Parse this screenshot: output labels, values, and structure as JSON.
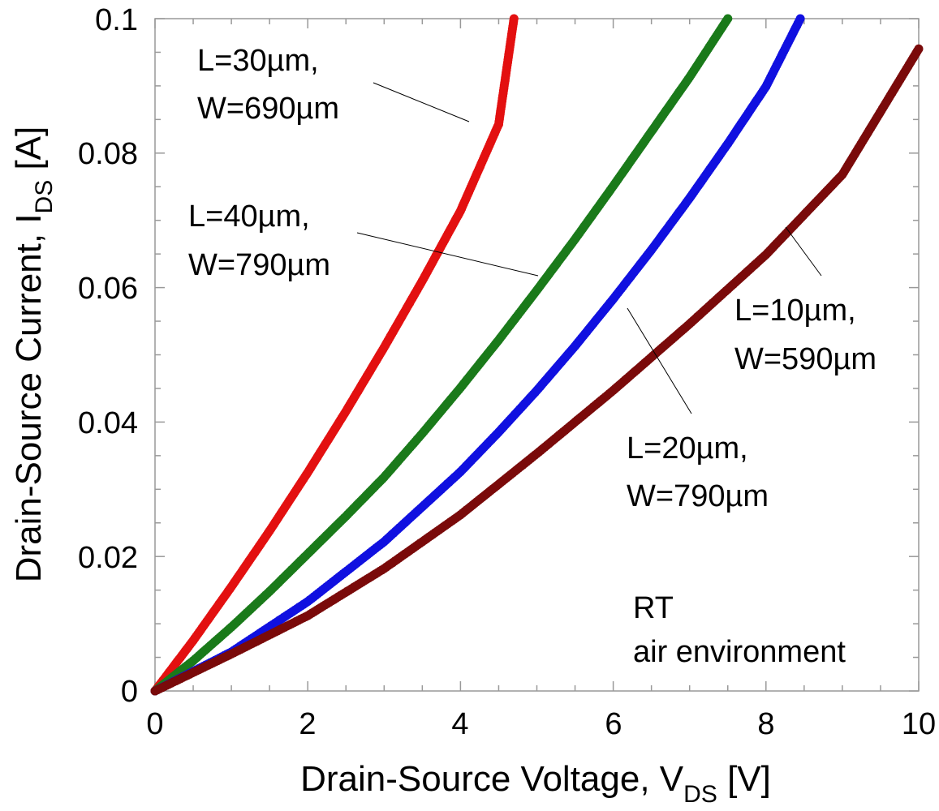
{
  "chart_data": {
    "type": "scatter",
    "title": "",
    "xlabel": {
      "main": "Drain-Source Voltage, V",
      "sub": "DS",
      "unit": " [V]"
    },
    "ylabel": {
      "main": "Drain-Source Current, I",
      "sub": "DS",
      "unit": " [A]"
    },
    "xlim": [
      0,
      10
    ],
    "ylim": [
      0,
      0.1
    ],
    "x_ticks": [
      0,
      2,
      4,
      6,
      8,
      10
    ],
    "x_tick_labels": [
      "0",
      "2",
      "4",
      "6",
      "8",
      "10"
    ],
    "y_ticks": [
      0,
      0.02,
      0.04,
      0.06,
      0.08,
      0.1
    ],
    "y_tick_labels": [
      "0",
      "0.02",
      "0.04",
      "0.06",
      "0.08",
      "0.1"
    ],
    "grid": false,
    "series": [
      {
        "name": "L=30µm, W=690µm",
        "color": "#e31010",
        "x": [
          0,
          0.5,
          1.0,
          1.5,
          2.0,
          2.5,
          3.0,
          3.5,
          4.0,
          4.5,
          4.7
        ],
        "values": [
          0,
          0.0075,
          0.0155,
          0.0238,
          0.0325,
          0.0416,
          0.0511,
          0.061,
          0.0714,
          0.0843,
          0.1
        ]
      },
      {
        "name": "L=40µm, W=790µm",
        "color": "#1a7a1a",
        "x": [
          0,
          0.5,
          1.0,
          1.5,
          2.0,
          2.5,
          3.0,
          3.5,
          4.0,
          4.5,
          5.0,
          5.5,
          6.0,
          6.5,
          7.0,
          7.5
        ],
        "values": [
          0,
          0.0045,
          0.0095,
          0.0148,
          0.0204,
          0.026,
          0.0318,
          0.0383,
          0.0451,
          0.0522,
          0.0596,
          0.0672,
          0.0751,
          0.0832,
          0.0913,
          0.1
        ]
      },
      {
        "name": "L=20µm, W=790µm",
        "color": "#1010e0",
        "x": [
          0,
          1.0,
          2.0,
          3.0,
          4.0,
          4.5,
          5.0,
          5.5,
          6.0,
          6.5,
          7.0,
          7.5,
          8.0,
          8.45
        ],
        "values": [
          0,
          0.0058,
          0.0133,
          0.0222,
          0.0326,
          0.0385,
          0.0447,
          0.0513,
          0.0583,
          0.0656,
          0.0733,
          0.0814,
          0.0899,
          0.1
        ]
      },
      {
        "name": "L=10µm, W=590µm",
        "color": "#7a0a0a",
        "x": [
          0,
          1.0,
          2.0,
          3.0,
          4.0,
          5.0,
          6.0,
          7.0,
          8.0,
          9.0,
          10.0
        ],
        "values": [
          0,
          0.0055,
          0.0112,
          0.0182,
          0.0262,
          0.0353,
          0.0447,
          0.0546,
          0.0649,
          0.0768,
          0.0955
        ]
      }
    ],
    "annotations": [
      {
        "line1": "L=30µm,",
        "line2": "W=690µm",
        "points_to": "L=30µm, W=690µm"
      },
      {
        "line1": "L=40µm,",
        "line2": "W=790µm",
        "points_to": "L=40µm, W=790µm"
      },
      {
        "line1": "L=10µm,",
        "line2": "W=590µm",
        "points_to": "L=10µm, W=590µm"
      },
      {
        "line1": "L=20µm,",
        "line2": "W=790µm",
        "points_to": "L=20µm, W=790µm"
      }
    ],
    "conditions": [
      "RT",
      "air environment"
    ]
  }
}
